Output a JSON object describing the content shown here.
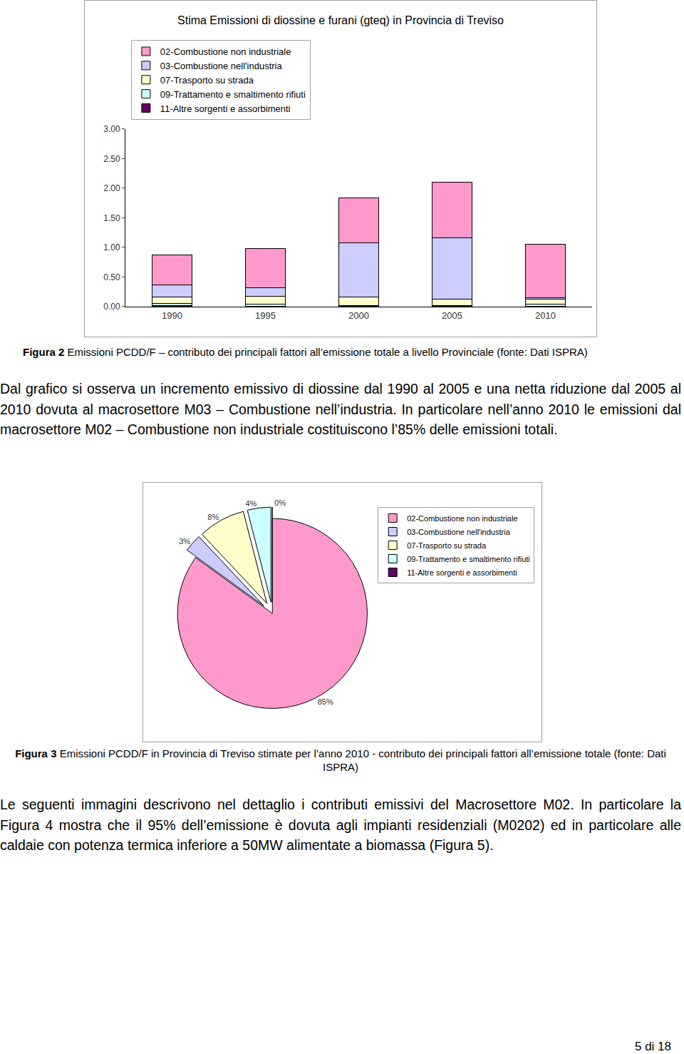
{
  "chart_data": [
    {
      "type": "bar",
      "title": "Stima Emissioni di diossine e furani (gteq) in Provincia di Treviso",
      "stacked": true,
      "categories": [
        "1990",
        "1995",
        "2000",
        "2005",
        "2010"
      ],
      "series": [
        {
          "name": "02-Combustione non industriale",
          "color": "#ff99cc",
          "values": [
            0.5,
            0.66,
            0.75,
            0.94,
            0.9
          ]
        },
        {
          "name": "03-Combustione nell'industria",
          "color": "#ccccff",
          "values": [
            0.21,
            0.14,
            0.92,
            1.03,
            0.03
          ]
        },
        {
          "name": "07-Trasporto su strada",
          "color": "#ffffcc",
          "values": [
            0.1,
            0.14,
            0.14,
            0.11,
            0.085
          ]
        },
        {
          "name": "09-Trattamento e smaltimento rifiuti",
          "color": "#ccffff",
          "values": [
            0.04,
            0.03,
            0.02,
            0.02,
            0.04
          ]
        },
        {
          "name": "11-Altre sorgenti e assorbimenti",
          "color": "#660066",
          "values": [
            0.02,
            0.01,
            0,
            0,
            0
          ]
        }
      ],
      "ylim": [
        0,
        3
      ],
      "yticks": [
        {
          "value": 0,
          "label": "0.00"
        },
        {
          "value": 0.5,
          "label": "0.50"
        },
        {
          "value": 1,
          "label": "1.00"
        },
        {
          "value": 1.5,
          "label": "1.50"
        },
        {
          "value": 2,
          "label": "2.00"
        },
        {
          "value": 2.5,
          "label": "2.50"
        },
        {
          "value": 3,
          "label": "3.00"
        }
      ],
      "grid": false,
      "legend": "upper left"
    },
    {
      "type": "pie",
      "categories": [
        "02-Combustione non industriale",
        "03-Combustione nell'industria",
        "07-Trasporto su strada",
        "09-Trattamento e smaltimento rifiuti",
        "11-Altre sorgenti e assorbimenti"
      ],
      "values": [
        85,
        3,
        8,
        4,
        0
      ],
      "value_labels": [
        "85%",
        "3%",
        "8%",
        "4%",
        "0%"
      ],
      "colors": [
        "#ff99cc",
        "#ccccff",
        "#ffffcc",
        "#ccffff",
        "#660066"
      ],
      "data_labels": true,
      "legend": "upper right"
    }
  ],
  "document": {
    "figure_2_caption": {
      "label": "Figura 2",
      "text": "Emissioni PCDD/F – contributo dei principali fattori all’emissione totale a livello Provinciale (fonte: Dati ISPRA)"
    },
    "paragraph_1": "Dal grafico si osserva un incremento emissivo di diossine dal 1990 al 2005 e una netta riduzione dal 2005 al 2010 dovuta al macrosettore M03 – Combustione nell’industria. In particolare nell’anno 2010 le emissioni dal macrosettore M02 – Combustione non industriale costituiscono l’85% delle emissioni totali.",
    "figure_3_caption": {
      "label": "Figura 3",
      "text": "Emissioni PCDD/F in Provincia di Treviso stimate per l’anno 2010 - contributo dei principali fattori all’emissione totale (fonte: Dati ISPRA)"
    },
    "paragraph_2": "Le seguenti immagini descrivono nel dettaglio i contributi emissivi del Macrosettore M02. In particolare la Figura 4 mostra che il 95% dell’emissione è dovuta agli impianti residenziali (M0202) ed in particolare alle caldaie con potenza termica inferiore a 50MW alimentate a biomassa (Figura 5).",
    "footer": "5 di 18"
  }
}
